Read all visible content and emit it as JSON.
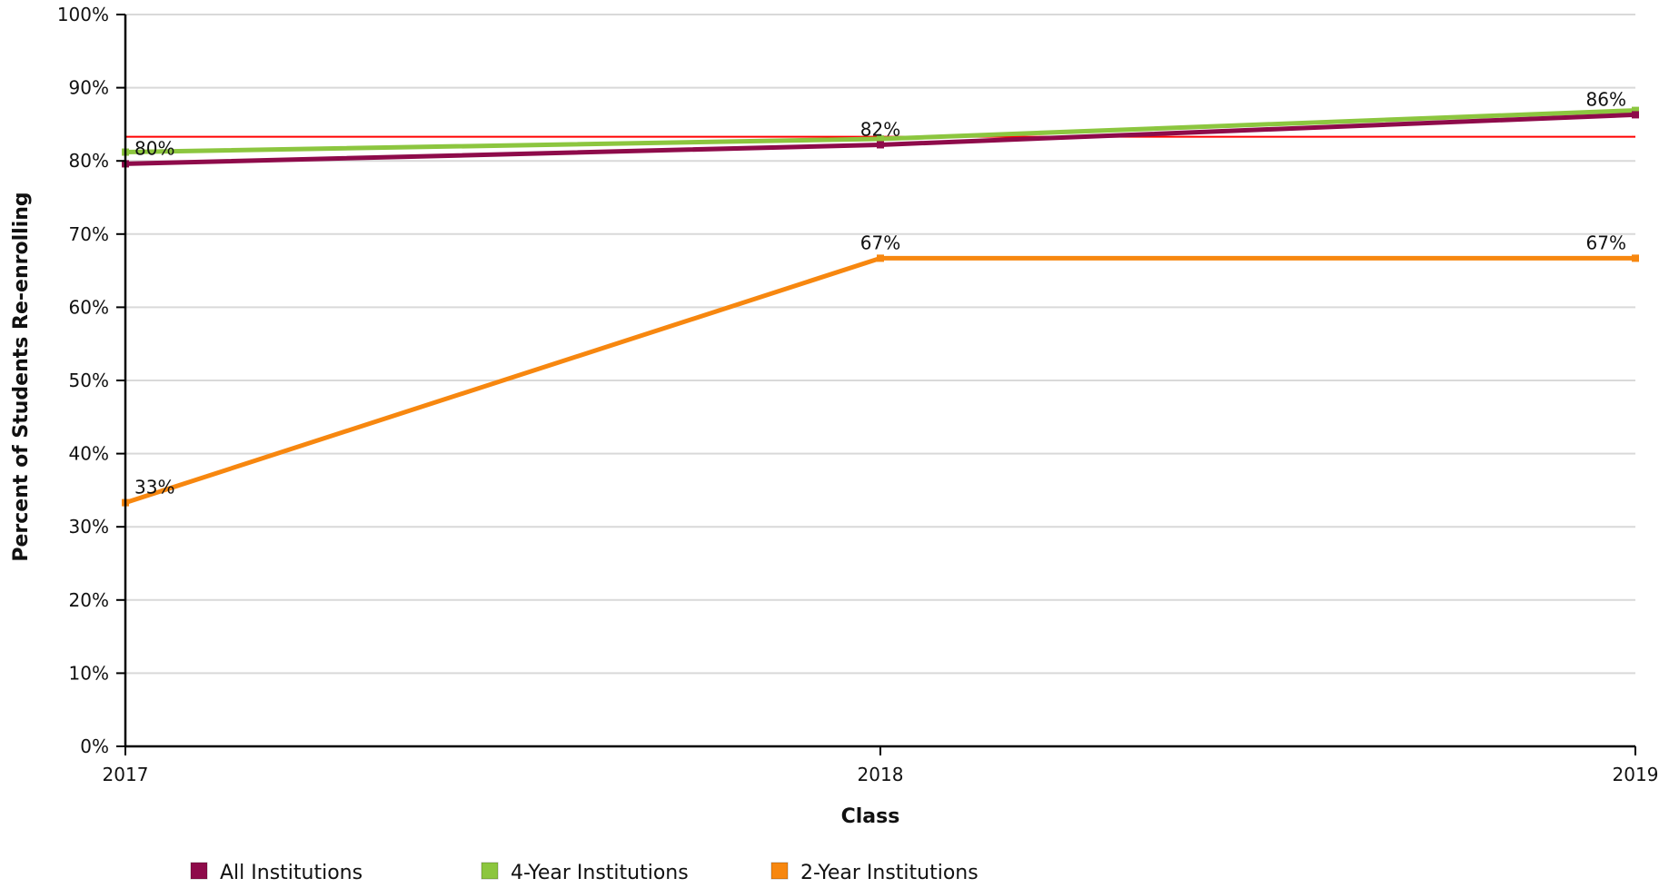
{
  "chart_data": {
    "type": "line",
    "title": "",
    "xlabel": "Class",
    "ylabel": "Percent of Students Re-enrolling",
    "x": [
      "2017",
      "2018",
      "2019"
    ],
    "xlim": [
      2017,
      2019
    ],
    "ylim": [
      0,
      100
    ],
    "yticks": [
      0,
      10,
      20,
      30,
      40,
      50,
      60,
      70,
      80,
      90,
      100
    ],
    "y_tick_labels": [
      "0%",
      "10%",
      "20%",
      "30%",
      "40%",
      "50%",
      "60%",
      "70%",
      "80%",
      "90%",
      "100%"
    ],
    "grid": "horizontal",
    "legend_position": "bottom",
    "reference_line": {
      "value": 83.3,
      "color": "#ff0000"
    },
    "series": [
      {
        "name": "All Institutions",
        "color": "#8e0b4a",
        "values": [
          79.6,
          82.2,
          86.3
        ],
        "labels": [
          "80%",
          "82%",
          "86%"
        ]
      },
      {
        "name": "4-Year Institutions",
        "color": "#8cc63f",
        "values": [
          81.2,
          83.0,
          86.9
        ],
        "labels": [
          "",
          "",
          ""
        ]
      },
      {
        "name": "2-Year Institutions",
        "color": "#f7870f",
        "values": [
          33.3,
          66.7,
          66.7
        ],
        "labels": [
          "33%",
          "67%",
          "67%"
        ]
      }
    ]
  }
}
